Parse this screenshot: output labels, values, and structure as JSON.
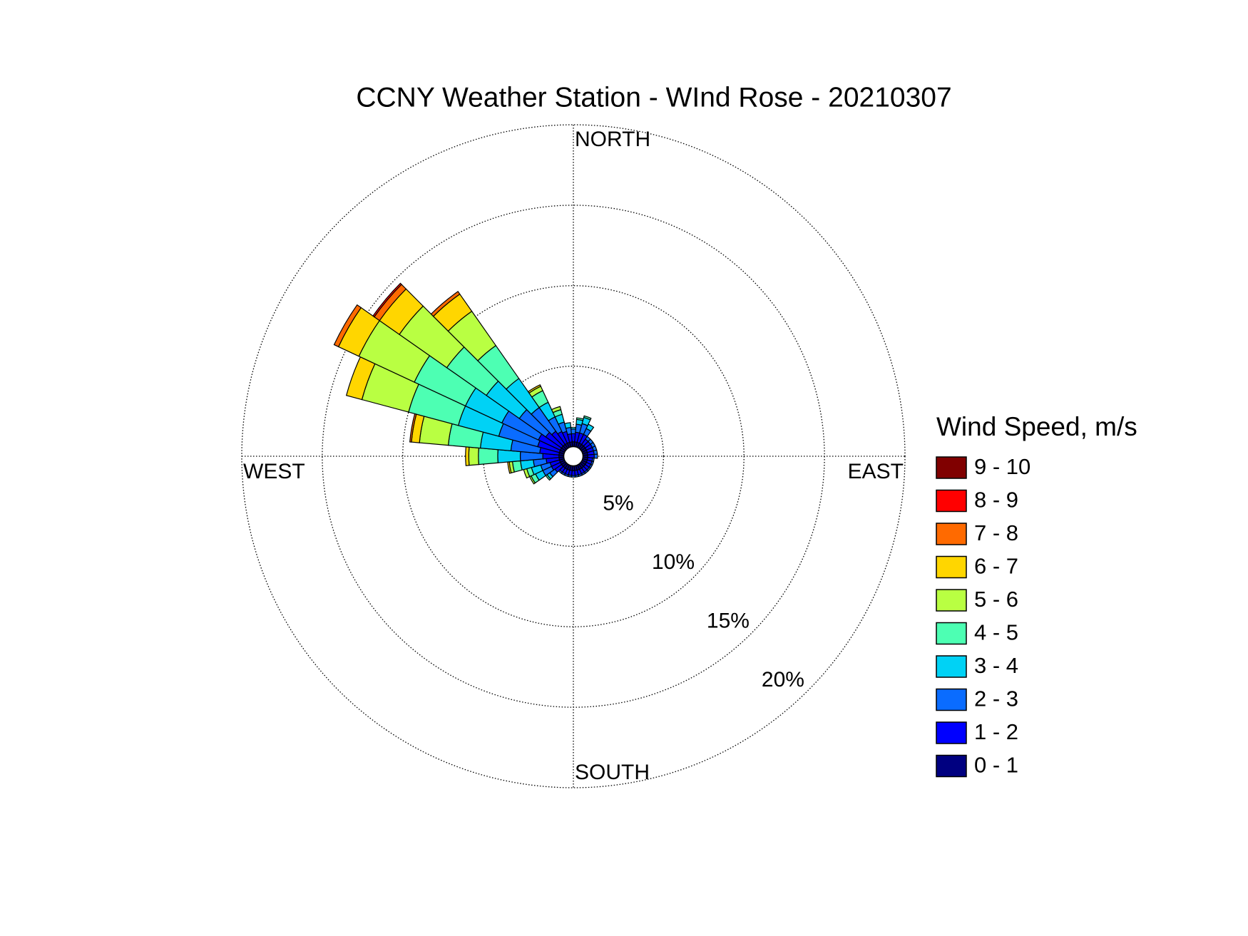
{
  "chart_data": {
    "type": "windrose",
    "title": "CCNY Weather Station - WInd Rose - 20210307",
    "legend_title": "Wind Speed, m/s",
    "legend": "right",
    "direction_labels": [
      "NORTH",
      "EAST",
      "SOUTH",
      "WEST"
    ],
    "x": [
      0,
      10,
      20,
      30,
      40,
      50,
      60,
      70,
      80,
      90,
      100,
      110,
      120,
      130,
      140,
      150,
      160,
      170,
      180,
      190,
      200,
      210,
      220,
      230,
      240,
      250,
      260,
      270,
      280,
      290,
      300,
      310,
      320,
      330,
      340,
      350
    ],
    "rlim": [
      0,
      20
    ],
    "rticks": [
      {
        "value": 5,
        "label": "5%"
      },
      {
        "value": 10,
        "label": "10%"
      },
      {
        "value": 15,
        "label": "15%"
      },
      {
        "value": 20,
        "label": "20%"
      }
    ],
    "grid": true,
    "series": [
      {
        "name": "0 - 1",
        "color": "#000080",
        "values": [
          0.3,
          0.3,
          0.3,
          0.3,
          0.3,
          0.3,
          0.3,
          0.3,
          0.3,
          0.3,
          0.3,
          0.3,
          0.3,
          0.3,
          0.3,
          0.3,
          0.3,
          0.3,
          0.3,
          0.3,
          0.3,
          0.3,
          0.3,
          0.3,
          0.3,
          0.3,
          0.3,
          0.3,
          0.3,
          0.3,
          0.3,
          0.3,
          0.3,
          0.3,
          0.3,
          0.3
        ]
      },
      {
        "name": "1 - 2",
        "color": "#0000ff",
        "values": [
          0.5,
          0.6,
          0.6,
          0.6,
          0.4,
          0.4,
          0.4,
          0.4,
          0.4,
          0.4,
          0.3,
          0.3,
          0.3,
          0.3,
          0.3,
          0.3,
          0.3,
          0.3,
          0.3,
          0.3,
          0.3,
          0.3,
          0.3,
          0.5,
          0.6,
          0.6,
          0.8,
          1.0,
          1.2,
          1.4,
          1.5,
          1.2,
          1.0,
          0.8,
          0.7,
          0.5
        ]
      },
      {
        "name": "2 - 3",
        "color": "#0a6cff",
        "values": [
          0.3,
          0.5,
          0.6,
          0.4,
          0.2,
          0.2,
          0.2,
          0.2,
          0.2,
          0.2,
          0.1,
          0.1,
          0.1,
          0.1,
          0.1,
          0.1,
          0.1,
          0.1,
          0.1,
          0.1,
          0.1,
          0.1,
          0.1,
          0.4,
          0.6,
          0.6,
          0.8,
          1.4,
          1.8,
          2.5,
          2.5,
          2.0,
          1.8,
          1.0,
          0.6,
          0.4
        ]
      },
      {
        "name": "3 - 4",
        "color": "#00d2f5",
        "values": [
          0.1,
          0.3,
          0.4,
          0.3,
          0,
          0,
          0,
          0,
          0,
          0,
          0,
          0,
          0,
          0,
          0,
          0,
          0,
          0,
          0,
          0,
          0,
          0,
          0,
          0.2,
          0.5,
          0.6,
          0.8,
          1.4,
          1.9,
          2.6,
          2.5,
          2.5,
          2.2,
          1.0,
          0.5,
          0.3
        ]
      },
      {
        "name": "4 - 5",
        "color": "#4dffb3",
        "values": [
          0,
          0.1,
          0.1,
          0,
          0,
          0,
          0,
          0,
          0,
          0,
          0,
          0,
          0,
          0,
          0,
          0,
          0,
          0,
          0,
          0,
          0,
          0,
          0,
          0.1,
          0.3,
          0.3,
          0.5,
          1.2,
          2.0,
          3.2,
          3.5,
          3.0,
          2.5,
          0.8,
          0.3,
          0
        ]
      },
      {
        "name": "5 - 6",
        "color": "#b9ff42",
        "values": [
          0,
          0,
          0,
          0,
          0,
          0,
          0,
          0,
          0,
          0,
          0,
          0,
          0,
          0,
          0,
          0,
          0,
          0,
          0,
          0,
          0,
          0,
          0,
          0,
          0.1,
          0.2,
          0.2,
          0.6,
          1.8,
          3.0,
          3.8,
          3.6,
          2.6,
          0.3,
          0.2,
          0
        ]
      },
      {
        "name": "6 - 7",
        "color": "#ffd600",
        "values": [
          0,
          0,
          0,
          0,
          0,
          0,
          0,
          0,
          0,
          0,
          0,
          0,
          0,
          0,
          0,
          0,
          0,
          0,
          0,
          0,
          0,
          0,
          0,
          0,
          0,
          0,
          0.1,
          0.2,
          0.5,
          1.0,
          1.4,
          1.5,
          1.3,
          0.1,
          0,
          0
        ]
      },
      {
        "name": "7 - 8",
        "color": "#ff6a00",
        "values": [
          0,
          0,
          0,
          0,
          0,
          0,
          0,
          0,
          0,
          0,
          0,
          0,
          0,
          0,
          0,
          0,
          0,
          0,
          0,
          0,
          0,
          0,
          0,
          0,
          0,
          0,
          0,
          0,
          0.1,
          0,
          0.3,
          0.4,
          0.2,
          0,
          0,
          0
        ]
      },
      {
        "name": "8 - 9",
        "color": "#ff0000",
        "values": [
          0,
          0,
          0,
          0,
          0,
          0,
          0,
          0,
          0,
          0,
          0,
          0,
          0,
          0,
          0,
          0,
          0,
          0,
          0,
          0,
          0,
          0,
          0,
          0,
          0,
          0,
          0,
          0,
          0,
          0,
          0,
          0.1,
          0,
          0,
          0,
          0
        ]
      },
      {
        "name": "9 - 10",
        "color": "#800000",
        "values": [
          0,
          0,
          0,
          0,
          0,
          0,
          0,
          0,
          0,
          0,
          0,
          0,
          0,
          0,
          0,
          0,
          0,
          0,
          0,
          0,
          0,
          0,
          0,
          0,
          0,
          0,
          0,
          0,
          0,
          0,
          0,
          0,
          0,
          0,
          0,
          0
        ]
      }
    ]
  }
}
